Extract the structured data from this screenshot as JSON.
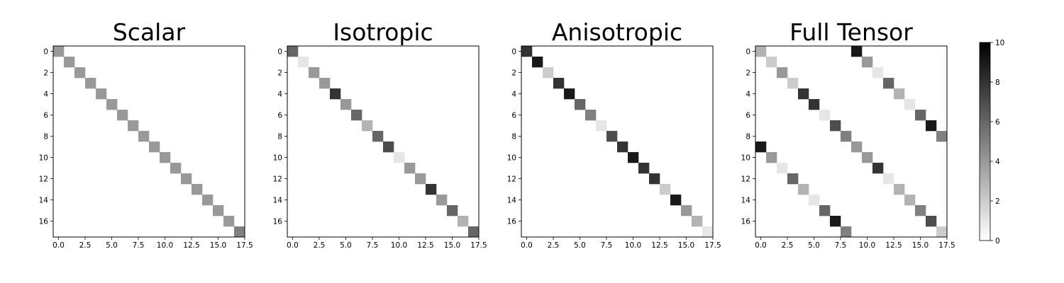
{
  "chart_data": {
    "type": "heatmap",
    "colormap": "gray_r",
    "vmin": 0,
    "vmax": 10,
    "size": 18,
    "panels": [
      {
        "title": "Scalar",
        "xticks": [
          "0.0",
          "2.5",
          "5.0",
          "7.5",
          "10.0",
          "12.5",
          "15.0",
          "17.5"
        ],
        "yticks": [
          "0",
          "2",
          "4",
          "6",
          "8",
          "10",
          "12",
          "14",
          "16"
        ],
        "cells": [
          [
            0,
            0,
            4
          ],
          [
            1,
            1,
            4
          ],
          [
            2,
            2,
            4
          ],
          [
            3,
            3,
            4
          ],
          [
            4,
            4,
            4
          ],
          [
            5,
            5,
            4
          ],
          [
            6,
            6,
            4
          ],
          [
            7,
            7,
            4
          ],
          [
            8,
            8,
            4
          ],
          [
            9,
            9,
            4
          ],
          [
            10,
            10,
            4
          ],
          [
            11,
            11,
            4
          ],
          [
            12,
            12,
            4
          ],
          [
            13,
            13,
            4
          ],
          [
            14,
            14,
            4
          ],
          [
            15,
            15,
            4
          ],
          [
            16,
            16,
            4
          ],
          [
            17,
            17,
            5
          ]
        ]
      },
      {
        "title": "Isotropic",
        "xticks": [
          "0.0",
          "2.5",
          "5.0",
          "7.5",
          "10.0",
          "12.5",
          "15.0",
          "17.5"
        ],
        "yticks": [
          "0",
          "2",
          "4",
          "6",
          "8",
          "10",
          "12",
          "14",
          "16"
        ],
        "cells": [
          [
            0,
            0,
            6
          ],
          [
            1,
            1,
            1
          ],
          [
            2,
            2,
            4
          ],
          [
            3,
            3,
            4
          ],
          [
            4,
            4,
            8
          ],
          [
            5,
            5,
            4
          ],
          [
            6,
            6,
            6
          ],
          [
            7,
            7,
            3
          ],
          [
            8,
            8,
            6
          ],
          [
            9,
            9,
            7
          ],
          [
            10,
            10,
            1
          ],
          [
            11,
            11,
            4
          ],
          [
            12,
            12,
            4
          ],
          [
            13,
            13,
            8
          ],
          [
            14,
            14,
            4
          ],
          [
            15,
            15,
            6
          ],
          [
            16,
            16,
            3
          ],
          [
            17,
            17,
            6
          ]
        ]
      },
      {
        "title": "Anisotropic",
        "xticks": [
          "0.0",
          "2.5",
          "5.0",
          "7.5",
          "10.0",
          "12.5",
          "15.0",
          "17.5"
        ],
        "yticks": [
          "0",
          "2",
          "4",
          "6",
          "8",
          "10",
          "12",
          "14",
          "16"
        ],
        "cells": [
          [
            0,
            0,
            8
          ],
          [
            1,
            1,
            9
          ],
          [
            2,
            2,
            2
          ],
          [
            3,
            3,
            8
          ],
          [
            4,
            4,
            9
          ],
          [
            5,
            5,
            6
          ],
          [
            6,
            6,
            5
          ],
          [
            7,
            7,
            1
          ],
          [
            8,
            8,
            7
          ],
          [
            9,
            9,
            8
          ],
          [
            10,
            10,
            9
          ],
          [
            11,
            11,
            8
          ],
          [
            12,
            12,
            8
          ],
          [
            13,
            13,
            2
          ],
          [
            14,
            14,
            9
          ],
          [
            15,
            15,
            4
          ],
          [
            16,
            16,
            3
          ],
          [
            17,
            17,
            1
          ]
        ]
      },
      {
        "title": "Full Tensor",
        "xticks": [
          "0.0",
          "2.5",
          "5.0",
          "7.5",
          "10.0",
          "12.5",
          "15.0",
          "17.5"
        ],
        "yticks": [
          "0",
          "2",
          "4",
          "6",
          "8",
          "10",
          "12",
          "14",
          "16"
        ],
        "cells": [
          [
            0,
            0,
            3
          ],
          [
            1,
            1,
            2
          ],
          [
            2,
            2,
            4
          ],
          [
            3,
            3,
            2
          ],
          [
            4,
            4,
            8
          ],
          [
            5,
            5,
            8
          ],
          [
            6,
            6,
            1
          ],
          [
            7,
            7,
            7
          ],
          [
            8,
            8,
            5
          ],
          [
            9,
            9,
            4
          ],
          [
            10,
            10,
            4
          ],
          [
            11,
            11,
            8
          ],
          [
            12,
            12,
            1
          ],
          [
            13,
            13,
            3
          ],
          [
            14,
            14,
            3
          ],
          [
            15,
            15,
            5
          ],
          [
            16,
            16,
            7
          ],
          [
            17,
            17,
            2
          ],
          [
            0,
            9,
            9
          ],
          [
            1,
            10,
            4
          ],
          [
            2,
            11,
            1
          ],
          [
            3,
            12,
            6
          ],
          [
            4,
            13,
            3
          ],
          [
            5,
            14,
            1
          ],
          [
            6,
            15,
            6
          ],
          [
            7,
            16,
            9
          ],
          [
            8,
            17,
            5
          ],
          [
            9,
            0,
            9
          ],
          [
            10,
            1,
            4
          ],
          [
            11,
            2,
            1
          ],
          [
            12,
            3,
            6
          ],
          [
            13,
            4,
            3
          ],
          [
            14,
            5,
            1
          ],
          [
            15,
            6,
            6
          ],
          [
            16,
            7,
            9
          ],
          [
            17,
            8,
            5
          ]
        ]
      }
    ],
    "colorbar": {
      "ticks": [
        "0",
        "2",
        "4",
        "6",
        "8",
        "10"
      ],
      "values": [
        0,
        2,
        4,
        6,
        8,
        10
      ]
    }
  }
}
